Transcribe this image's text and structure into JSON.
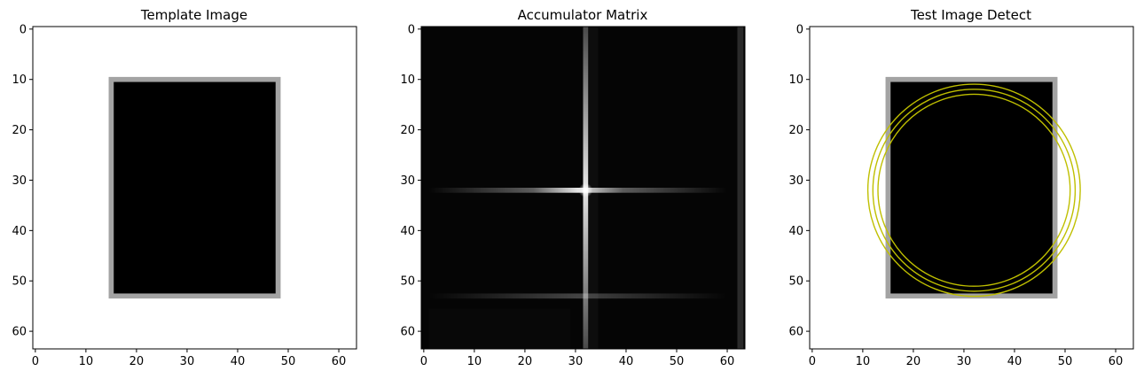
{
  "chart_data": [
    {
      "type": "heatmap",
      "title": "Template Image",
      "xlim": [
        -0.5,
        63.5
      ],
      "ylim": [
        63.5,
        -0.5
      ],
      "x_ticks": [
        0,
        10,
        20,
        30,
        40,
        50,
        60
      ],
      "y_ticks": [
        0,
        10,
        20,
        30,
        40,
        50,
        60
      ],
      "colormap": "gray",
      "background": "#ffffff",
      "rectangle": {
        "x0": 15,
        "y0": 10,
        "x1": 48,
        "y1": 53,
        "fill": "#000000",
        "border": "#a3a3a3"
      }
    },
    {
      "type": "heatmap",
      "title": "Accumulator Matrix",
      "xlim": [
        -0.5,
        63.5
      ],
      "ylim": [
        63.5,
        -0.5
      ],
      "x_ticks": [
        0,
        10,
        20,
        30,
        40,
        50,
        60
      ],
      "y_ticks": [
        0,
        10,
        20,
        30,
        40,
        50,
        60
      ],
      "colormap": "gray",
      "background": "#050505",
      "peak": {
        "x": 32,
        "y": 32
      },
      "secondary_line_y": 53,
      "edge_line_x": 63
    },
    {
      "type": "heatmap",
      "title": "Test Image Detect",
      "xlim": [
        -0.5,
        63.5
      ],
      "ylim": [
        63.5,
        -0.5
      ],
      "x_ticks": [
        0,
        10,
        20,
        30,
        40,
        50,
        60
      ],
      "y_ticks": [
        0,
        10,
        20,
        30,
        40,
        50,
        60
      ],
      "colormap": "gray",
      "background": "#ffffff",
      "rectangle": {
        "x0": 15,
        "y0": 10,
        "x1": 48,
        "y1": 53,
        "fill": "#000000",
        "border": "#a3a3a3"
      },
      "detected_circles": [
        {
          "cx": 32,
          "cy": 32,
          "r": 19,
          "color": "#bfbf00"
        },
        {
          "cx": 32,
          "cy": 32,
          "r": 20,
          "color": "#bfbf00"
        },
        {
          "cx": 32,
          "cy": 32,
          "r": 21,
          "color": "#bfbf00"
        }
      ]
    }
  ]
}
